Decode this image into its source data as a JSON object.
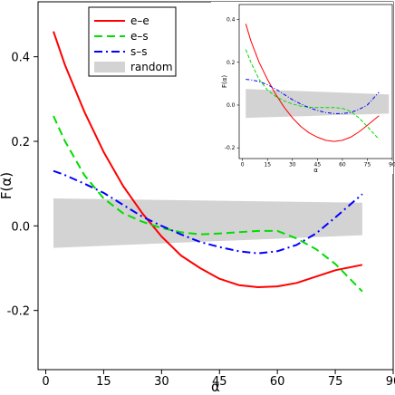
{
  "chart_data": [
    {
      "type": "line",
      "name": "main",
      "xlabel": "α",
      "ylabel": "F(α)",
      "xlim": [
        -2,
        90
      ],
      "ylim": [
        -0.34,
        0.53
      ],
      "xticks": [
        0,
        15,
        30,
        45,
        60,
        75,
        90
      ],
      "yticks": [
        -0.2,
        0.0,
        0.2,
        0.4
      ],
      "ytick_labels": [
        "-0.2",
        "0.0",
        "0.2",
        "0.4"
      ],
      "grid": false,
      "legend_position": "top-left",
      "band": {
        "name": "random",
        "color": "#d3d3d3",
        "x": [
          2,
          82
        ],
        "upper": [
          0.065,
          0.055
        ],
        "lower": [
          -0.052,
          -0.022
        ]
      },
      "series": [
        {
          "name": "e–e",
          "color": "#ff0000",
          "dash": "solid",
          "x": [
            2,
            5,
            10,
            15,
            20,
            25,
            30,
            35,
            40,
            45,
            50,
            55,
            60,
            65,
            70,
            75,
            82
          ],
          "y": [
            0.46,
            0.38,
            0.27,
            0.175,
            0.095,
            0.03,
            -0.025,
            -0.07,
            -0.1,
            -0.125,
            -0.14,
            -0.145,
            -0.143,
            -0.135,
            -0.12,
            -0.105,
            -0.092
          ]
        },
        {
          "name": "e–s",
          "color": "#00dd00",
          "dash": "dashed",
          "x": [
            2,
            5,
            10,
            15,
            20,
            25,
            30,
            35,
            40,
            45,
            50,
            55,
            60,
            65,
            70,
            75,
            82
          ],
          "y": [
            0.26,
            0.2,
            0.12,
            0.065,
            0.03,
            0.01,
            -0.005,
            -0.015,
            -0.02,
            -0.018,
            -0.015,
            -0.012,
            -0.012,
            -0.03,
            -0.055,
            -0.09,
            -0.155
          ]
        },
        {
          "name": "s–s",
          "color": "#0000ff",
          "dash": "dashdot",
          "x": [
            2,
            5,
            10,
            15,
            20,
            25,
            30,
            35,
            40,
            45,
            50,
            55,
            60,
            65,
            70,
            75,
            82
          ],
          "y": [
            0.13,
            0.12,
            0.1,
            0.078,
            0.05,
            0.022,
            0.0,
            -0.02,
            -0.038,
            -0.05,
            -0.06,
            -0.065,
            -0.06,
            -0.045,
            -0.018,
            0.02,
            0.075
          ]
        }
      ]
    },
    {
      "type": "line",
      "name": "inset",
      "xlabel": "α",
      "ylabel": "F(α)",
      "xlim": [
        -2,
        90
      ],
      "ylim": [
        -0.25,
        0.47
      ],
      "xticks": [
        0,
        15,
        30,
        45,
        60,
        75,
        90
      ],
      "yticks": [
        -0.2,
        0.0,
        0.2,
        0.4
      ],
      "ytick_labels": [
        "-0.2",
        "0.0",
        "0.2",
        "0.4"
      ],
      "grid": false,
      "band": {
        "name": "random",
        "color": "#d3d3d3",
        "x": [
          2,
          88
        ],
        "upper": [
          0.075,
          0.05
        ],
        "lower": [
          -0.06,
          -0.04
        ]
      },
      "series": [
        {
          "name": "e–e",
          "color": "#ff0000",
          "dash": "solid",
          "x": [
            2,
            5,
            10,
            15,
            20,
            25,
            30,
            35,
            40,
            45,
            50,
            55,
            60,
            65,
            70,
            75,
            82
          ],
          "y": [
            0.38,
            0.3,
            0.2,
            0.12,
            0.05,
            -0.01,
            -0.06,
            -0.1,
            -0.13,
            -0.15,
            -0.165,
            -0.17,
            -0.165,
            -0.15,
            -0.125,
            -0.095,
            -0.05
          ]
        },
        {
          "name": "e–s",
          "color": "#00dd00",
          "dash": "dashed",
          "x": [
            2,
            5,
            10,
            15,
            20,
            25,
            30,
            35,
            40,
            45,
            50,
            55,
            60,
            65,
            70,
            75,
            82
          ],
          "y": [
            0.26,
            0.2,
            0.12,
            0.07,
            0.04,
            0.02,
            0.005,
            -0.005,
            -0.01,
            -0.012,
            -0.012,
            -0.012,
            -0.015,
            -0.03,
            -0.06,
            -0.1,
            -0.16
          ]
        },
        {
          "name": "s–s",
          "color": "#0000ff",
          "dash": "dashdot",
          "x": [
            2,
            5,
            10,
            15,
            20,
            25,
            30,
            35,
            40,
            45,
            50,
            55,
            60,
            65,
            70,
            75,
            82
          ],
          "y": [
            0.12,
            0.118,
            0.11,
            0.095,
            0.075,
            0.05,
            0.025,
            0.005,
            -0.012,
            -0.025,
            -0.035,
            -0.04,
            -0.04,
            -0.035,
            -0.02,
            0.0,
            0.06
          ]
        }
      ]
    }
  ]
}
